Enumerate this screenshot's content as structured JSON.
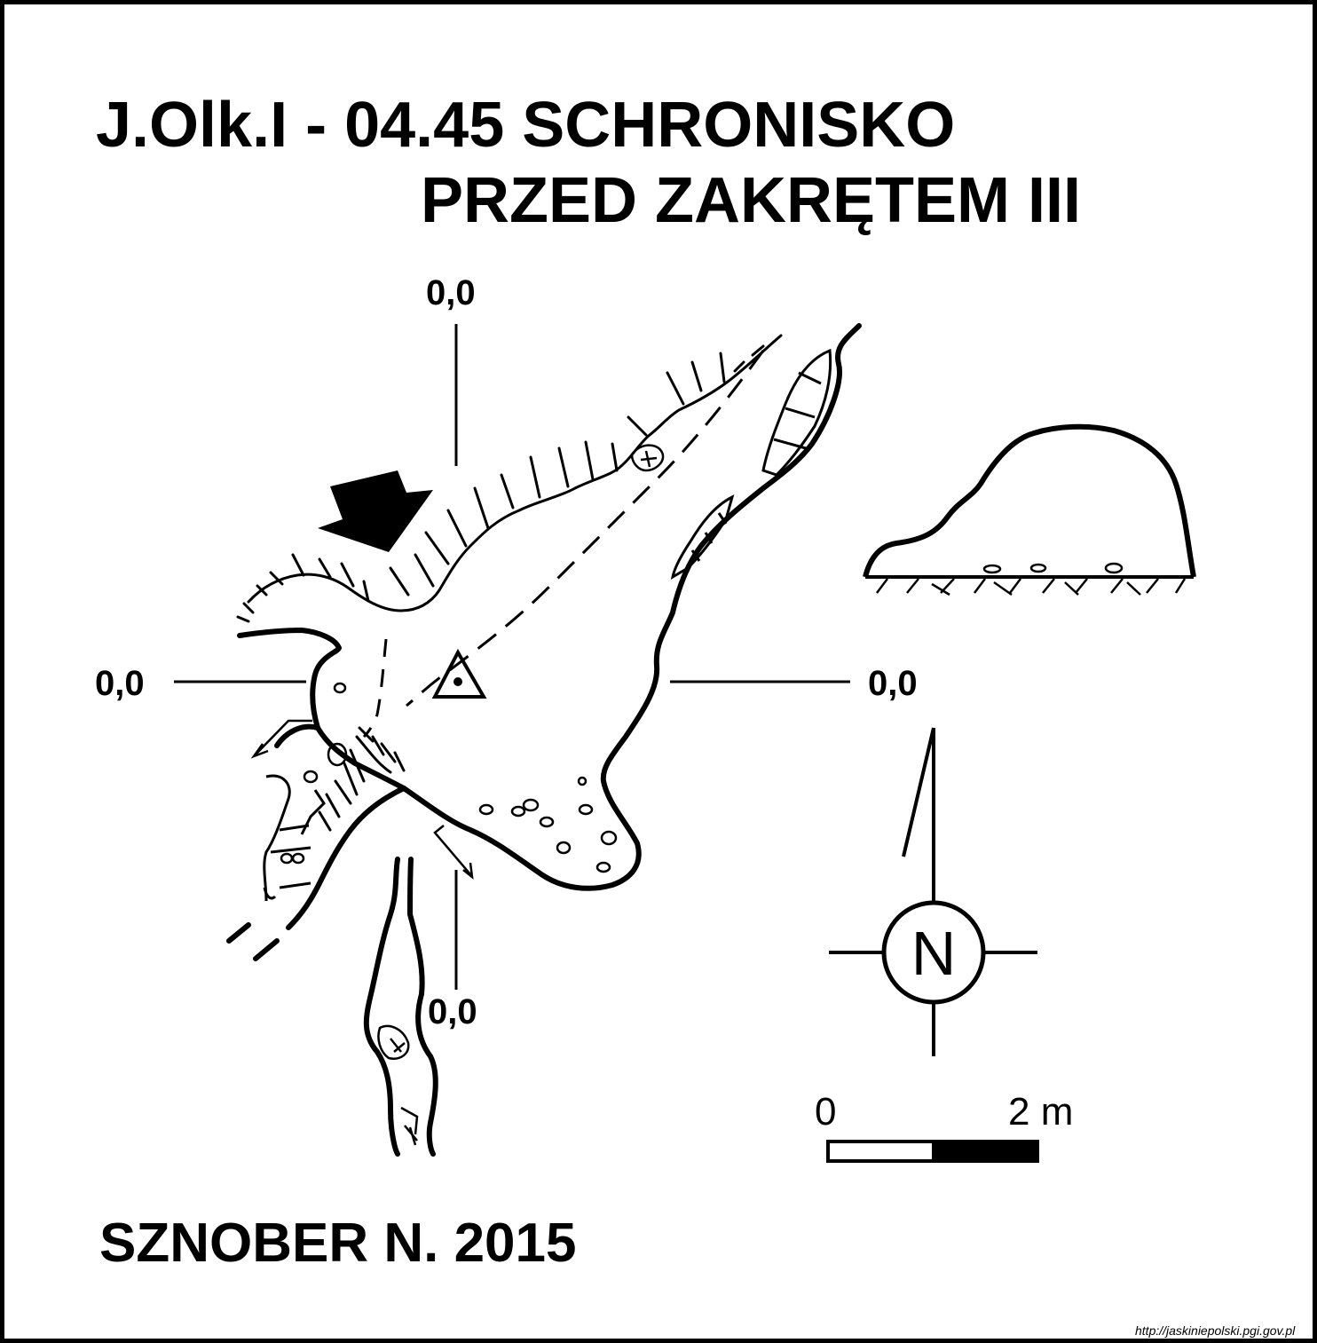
{
  "title": {
    "line1": "J.Olk.I - 04.45  SCHRONISKO",
    "line2": "PRZED ZAKRĘTEM  III"
  },
  "coordinates": {
    "top": "0,0",
    "left": "0,0",
    "right": "0,0",
    "bottom": "0,0"
  },
  "north_arrow": {
    "label": "N"
  },
  "scale_bar": {
    "start_label": "0",
    "end_label": "2 m"
  },
  "author": "SZNOBER N.  2015",
  "source_url": "http://jaskiniepolski.pgi.gov.pl",
  "colors": {
    "ink": "#000000",
    "paper": "#ffffff"
  }
}
